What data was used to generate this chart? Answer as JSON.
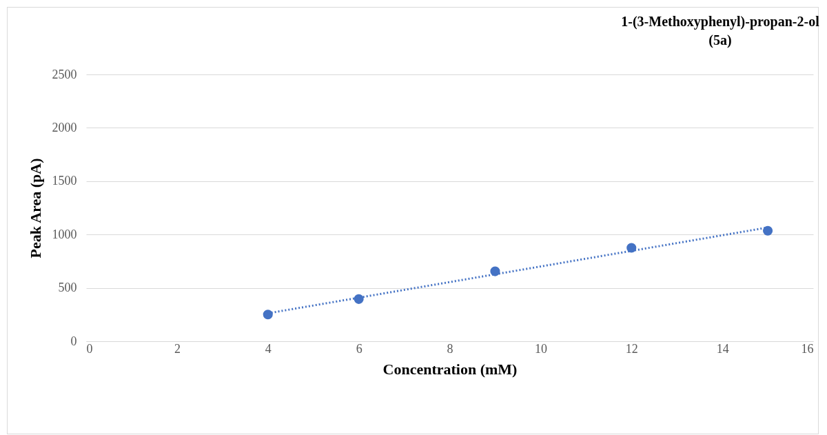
{
  "chart_data": {
    "type": "scatter",
    "title": "1-(3-Methoxyphenyl)-propan-2-ol\n(5a)",
    "xlabel": "Concentration (mM)",
    "ylabel": "Peak Area (pA)",
    "series": [
      {
        "color": "#4472c4",
        "marker": "circle",
        "x": [
          4,
          6,
          9,
          12,
          15
        ],
        "values": [
          250,
          395,
          655,
          875,
          1035
        ]
      },
      {
        "type": "line",
        "color": "#4472c4",
        "line_style": "dotted",
        "x": [
          4,
          15
        ],
        "values": [
          262,
          1066
        ]
      }
    ],
    "xlim": [
      0,
      16
    ],
    "xticks": [
      0,
      2,
      4,
      6,
      8,
      10,
      12,
      14,
      16
    ],
    "ylim": [
      0,
      2500
    ],
    "yticks": [
      0,
      500,
      1000,
      1500,
      2000,
      2500
    ],
    "grid": "y"
  }
}
